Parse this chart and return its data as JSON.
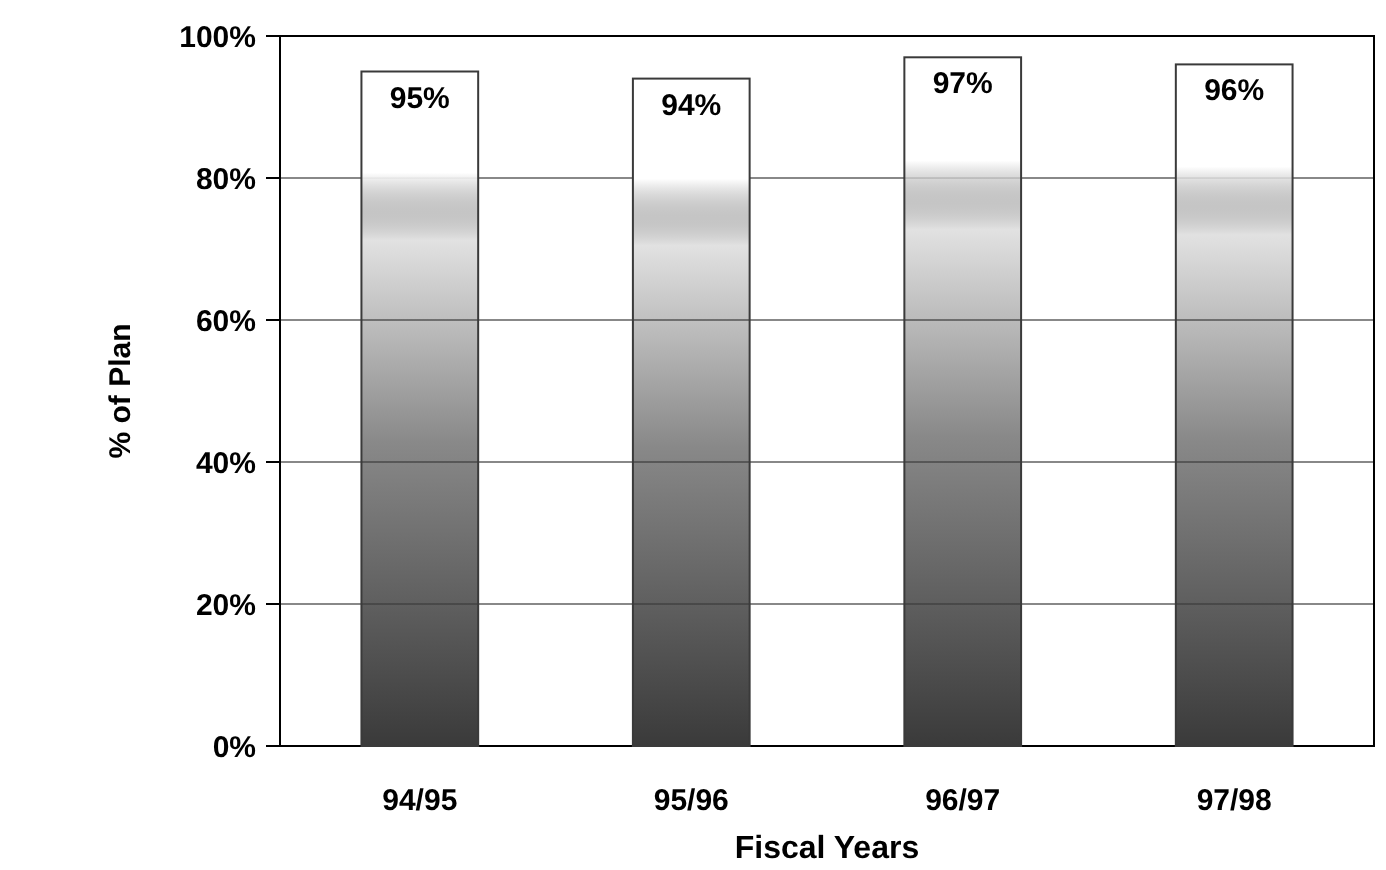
{
  "chart_data": {
    "type": "bar",
    "xlabel": "Fiscal Years",
    "ylabel": "% of Plan",
    "categories": [
      "94/95",
      "95/96",
      "96/97",
      "97/98"
    ],
    "values": [
      95,
      94,
      97,
      96
    ],
    "value_labels": [
      "95%",
      "94%",
      "97%",
      "96%"
    ],
    "color": "#3a3a3a",
    "ylim": [
      0,
      100
    ],
    "yticks": [
      {
        "value": 0,
        "label": "0%"
      },
      {
        "value": 20,
        "label": "20%"
      },
      {
        "value": 40,
        "label": "40%"
      },
      {
        "value": 60,
        "label": "60%"
      },
      {
        "value": 80,
        "label": "80%"
      },
      {
        "value": 100,
        "label": "100%"
      }
    ],
    "grid": "y"
  }
}
